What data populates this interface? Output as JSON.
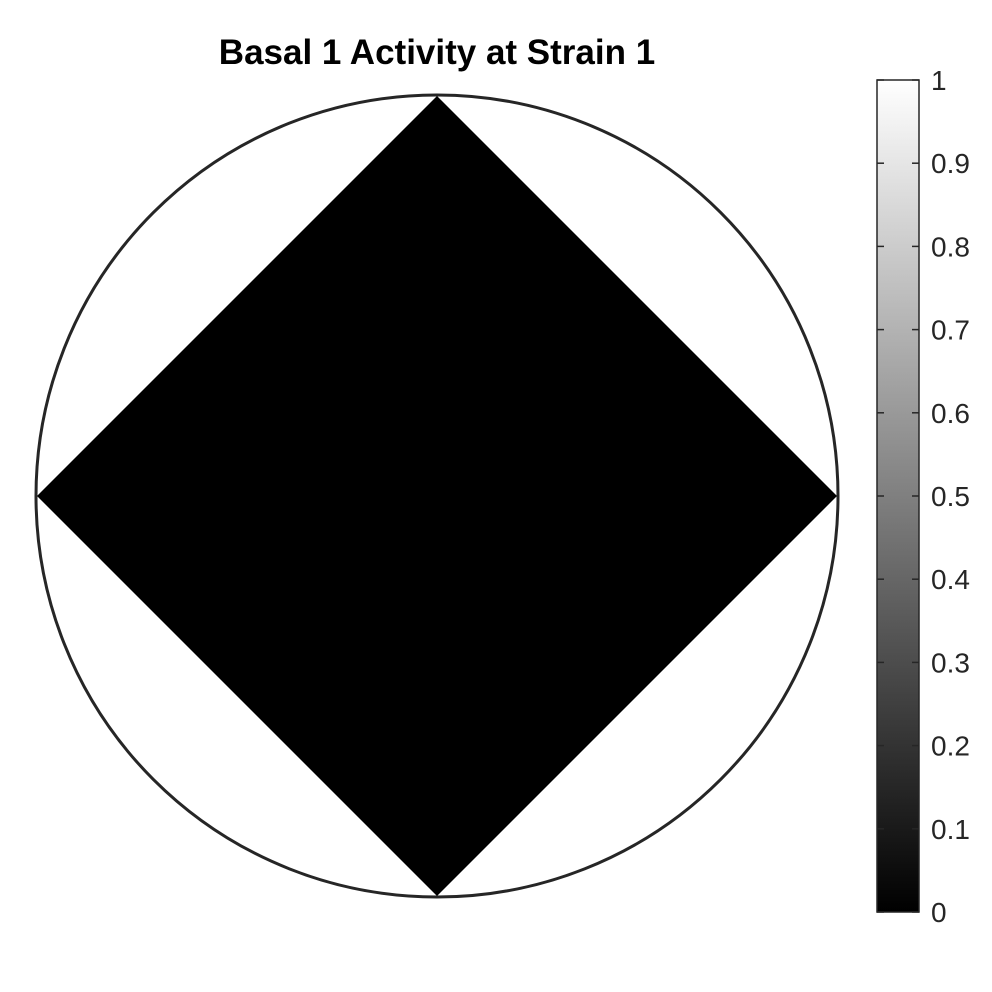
{
  "chart_data": {
    "type": "heatmap",
    "title": "Basal 1 Activity at Strain 1",
    "plot": {
      "shape": "circle",
      "region": {
        "shape": "diamond",
        "value": 0
      },
      "background_value": 1
    },
    "colorbar": {
      "colormap": "gray",
      "limits": [
        0,
        1
      ],
      "ticks": [
        0,
        0.1,
        0.2,
        0.3,
        0.4,
        0.5,
        0.6,
        0.7,
        0.8,
        0.9,
        1
      ],
      "tick_labels": [
        "0",
        "0.1",
        "0.2",
        "0.3",
        "0.4",
        "0.5",
        "0.6",
        "0.7",
        "0.8",
        "0.9",
        "1"
      ]
    },
    "colors": {
      "outline": "#262626",
      "low": "#000000",
      "high": "#ffffff"
    }
  }
}
